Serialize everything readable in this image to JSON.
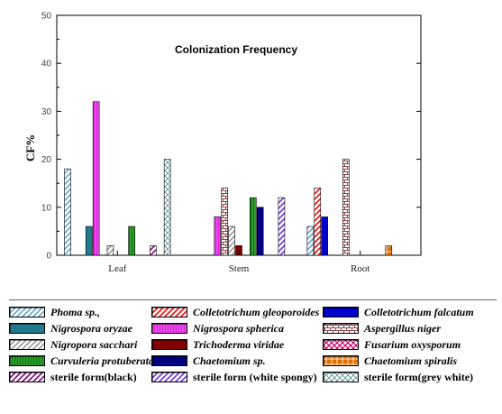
{
  "chart_data": {
    "type": "bar",
    "title": "Colonization Frequency",
    "ylabel": "CF%",
    "xlabel": "",
    "ylim": [
      0,
      50
    ],
    "yticks": [
      0,
      10,
      20,
      30,
      40,
      50
    ],
    "grid": false,
    "legend_position": "bottom",
    "categories": [
      "Leaf",
      "Stem",
      "Root"
    ],
    "series": [
      {
        "name": "Phoma sp.,",
        "color": "#5fa8c8",
        "pattern": "diag",
        "italic": true,
        "values": [
          18,
          0,
          6
        ]
      },
      {
        "name": "Colletotrichum gleoporoides",
        "color": "#ff0000",
        "pattern": "diag",
        "italic": true,
        "values": [
          0,
          0,
          14
        ]
      },
      {
        "name": "Colletotrichum falcatum",
        "color": "#0000cc",
        "pattern": "solid",
        "italic": true,
        "values": [
          0,
          0,
          8
        ]
      },
      {
        "name": "Nigrospora oryzae",
        "color": "#1f7a8c",
        "pattern": "solid",
        "italic": true,
        "values": [
          6,
          0,
          0
        ]
      },
      {
        "name": "Nigrospora spherica",
        "color": "#e020e0",
        "pattern": "vert",
        "italic": true,
        "values": [
          32,
          8,
          0
        ]
      },
      {
        "name": "Aspergillus niger",
        "color": "#8b4a4a",
        "pattern": "brick",
        "italic": true,
        "values": [
          0,
          14,
          20
        ]
      },
      {
        "name": "Nigropora sacchari",
        "color": "#999999",
        "pattern": "diag",
        "italic": true,
        "values": [
          2,
          6,
          0
        ]
      },
      {
        "name": "Trichoderma viridae",
        "color": "#800000",
        "pattern": "solid",
        "italic": true,
        "values": [
          0,
          2,
          0
        ]
      },
      {
        "name": "Fusarium oxysporum",
        "color": "#cc0066",
        "pattern": "cross",
        "italic": true,
        "values": [
          0,
          0,
          0
        ]
      },
      {
        "name": "Curvuleria protuberata",
        "color": "#008000",
        "pattern": "vert",
        "italic": true,
        "values": [
          6,
          12,
          0
        ]
      },
      {
        "name": "Chaetomium sp.",
        "color": "#000080",
        "pattern": "solid",
        "italic": true,
        "values": [
          0,
          10,
          0
        ]
      },
      {
        "name": "Chaetomium spiralis",
        "color": "#e07000",
        "pattern": "grid",
        "italic": true,
        "values": [
          0,
          0,
          2
        ]
      },
      {
        "name": "sterile form(black)",
        "color": "#800080",
        "pattern": "diag",
        "italic": false,
        "values": [
          2,
          0,
          0
        ]
      },
      {
        "name": "sterile form (white spongy)",
        "color": "#7030e0",
        "pattern": "diag",
        "italic": false,
        "values": [
          0,
          12,
          0
        ]
      },
      {
        "name": "sterile form(grey white)",
        "color": "#5a9090",
        "pattern": "check",
        "italic": false,
        "values": [
          20,
          0,
          0
        ]
      }
    ]
  }
}
